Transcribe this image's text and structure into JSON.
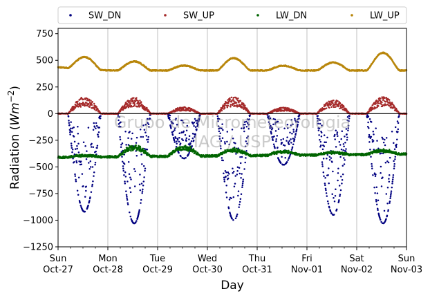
{
  "chart_data": {
    "type": "scatter",
    "xlabel": "Day",
    "ylabel": "Radiation",
    "ylabel_unit_base": "Wm",
    "ylabel_unit_exp": "−2",
    "ylim": [
      -1250,
      800
    ],
    "yticks": [
      -1250,
      -1000,
      -750,
      -500,
      -250,
      0,
      250,
      500,
      750
    ],
    "ytick_labels": [
      "−1250",
      "−1000",
      "−750",
      "−500",
      "−250",
      "0",
      "250",
      "500",
      "750"
    ],
    "x_range_days": [
      "Oct-27",
      "Nov-03"
    ],
    "xticks": [
      {
        "weekday": "Sun",
        "date": "Oct-27"
      },
      {
        "weekday": "Mon",
        "date": "Oct-28"
      },
      {
        "weekday": "Tue",
        "date": "Oct-29"
      },
      {
        "weekday": "Wed",
        "date": "Oct-30"
      },
      {
        "weekday": "Thu",
        "date": "Oct-31"
      },
      {
        "weekday": "Fri",
        "date": "Nov-01"
      },
      {
        "weekday": "Sat",
        "date": "Nov-02"
      },
      {
        "weekday": "Sun",
        "date": "Nov-03"
      }
    ],
    "grid": "vertical",
    "zero_line": true,
    "legend_position": "top",
    "watermark": [
      "Grupo de Micrometeorologia",
      "IAG / USP"
    ],
    "series": [
      {
        "name": "SW_DN",
        "color": "#000080",
        "daily_peak": [
          -920,
          -1030,
          -420,
          -1000,
          -480,
          -950,
          -1030
        ]
      },
      {
        "name": "SW_UP",
        "color": "#a52a2a",
        "daily_peak": [
          150,
          145,
          60,
          150,
          55,
          125,
          150
        ]
      },
      {
        "name": "LW_DN",
        "color": "#006400",
        "daily_peak": [
          -390,
          -300,
          -300,
          -330,
          -350,
          -360,
          -340
        ]
      },
      {
        "name": "LW_UP",
        "color": "#b8860b",
        "daily_peak": [
          530,
          490,
          450,
          520,
          450,
          480,
          570
        ]
      }
    ]
  }
}
